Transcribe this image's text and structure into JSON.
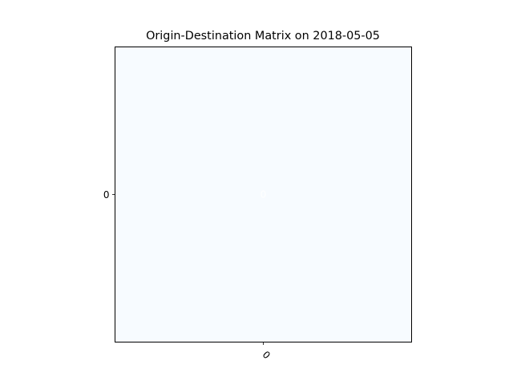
{
  "chart_data": {
    "type": "heatmap",
    "title": "Origin-Destination Matrix on 2018-05-05",
    "xlabel": "",
    "ylabel": "",
    "x_categories": [
      "0"
    ],
    "y_categories": [
      "0"
    ],
    "values": [
      [
        0
      ]
    ],
    "value_range": [
      0,
      1
    ],
    "colormap": "Blues",
    "cell_color": "#f7fbff",
    "cell_text": [
      [
        "0"
      ]
    ],
    "cell_text_color": "#ffffff",
    "grid": false,
    "legend": "none",
    "xtick_rotation": 45
  }
}
